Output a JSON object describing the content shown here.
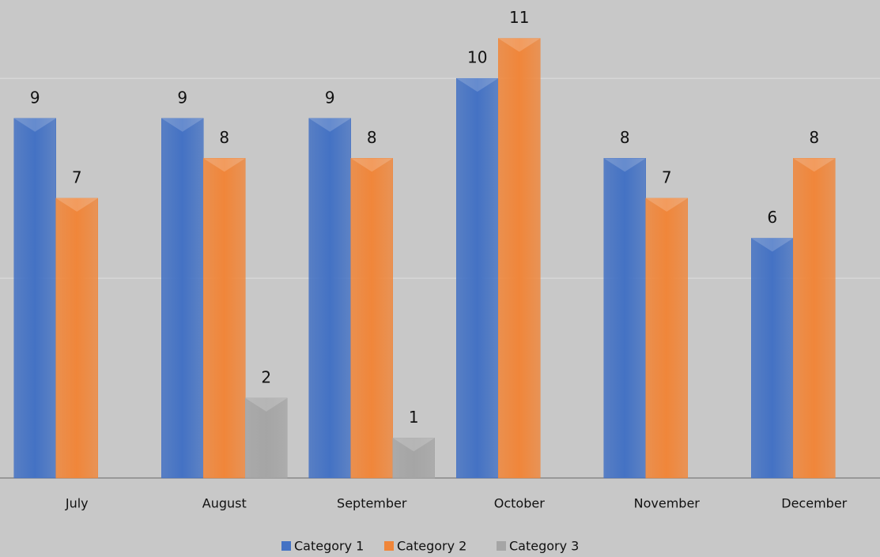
{
  "chart_data": {
    "type": "bar",
    "categories": [
      "July",
      "August",
      "September",
      "October",
      "November",
      "December"
    ],
    "series": [
      {
        "name": "Category 1",
        "color": "#4472c4",
        "values": [
          9,
          9,
          9,
          10,
          8,
          6
        ]
      },
      {
        "name": "Category 2",
        "color": "#f0863a",
        "values": [
          7,
          8,
          8,
          11,
          7,
          8
        ]
      },
      {
        "name": "Category 3",
        "color": "#a5a5a5",
        "values": [
          null,
          2,
          1,
          null,
          null,
          null
        ]
      }
    ],
    "ylim": [
      0,
      12
    ],
    "yticks": [
      0,
      5,
      10
    ],
    "grid": true,
    "legend": "bottom"
  }
}
